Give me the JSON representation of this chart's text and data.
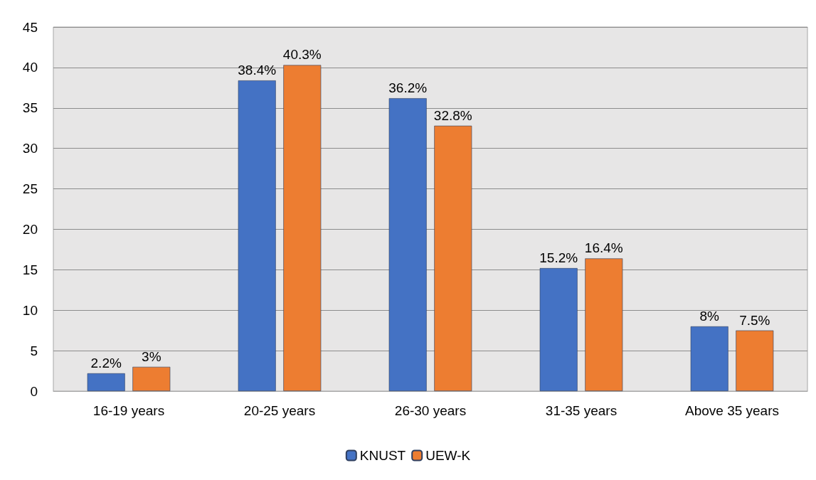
{
  "chart_data": {
    "type": "bar",
    "categories": [
      "16-19 years",
      "20-25 years",
      "26-30 years",
      "31-35 years",
      "Above 35 years"
    ],
    "series": [
      {
        "name": "KNUST",
        "color": "#4472c4",
        "values": [
          2.2,
          38.4,
          36.2,
          15.2,
          8
        ],
        "value_labels": [
          "2.2%",
          "38.4%",
          "36.2%",
          "15.2%",
          "8%"
        ]
      },
      {
        "name": "UEW-K",
        "color": "#ed7d31",
        "values": [
          3,
          40.3,
          32.8,
          16.4,
          7.5
        ],
        "value_labels": [
          "3%",
          "40.3%",
          "32.8%",
          "16.4%",
          "7.5%"
        ]
      }
    ],
    "ylim": [
      0,
      45
    ],
    "yticks": [
      0,
      5,
      10,
      15,
      20,
      25,
      30,
      35,
      40,
      45
    ],
    "grid": "y",
    "legend": "bottom"
  }
}
